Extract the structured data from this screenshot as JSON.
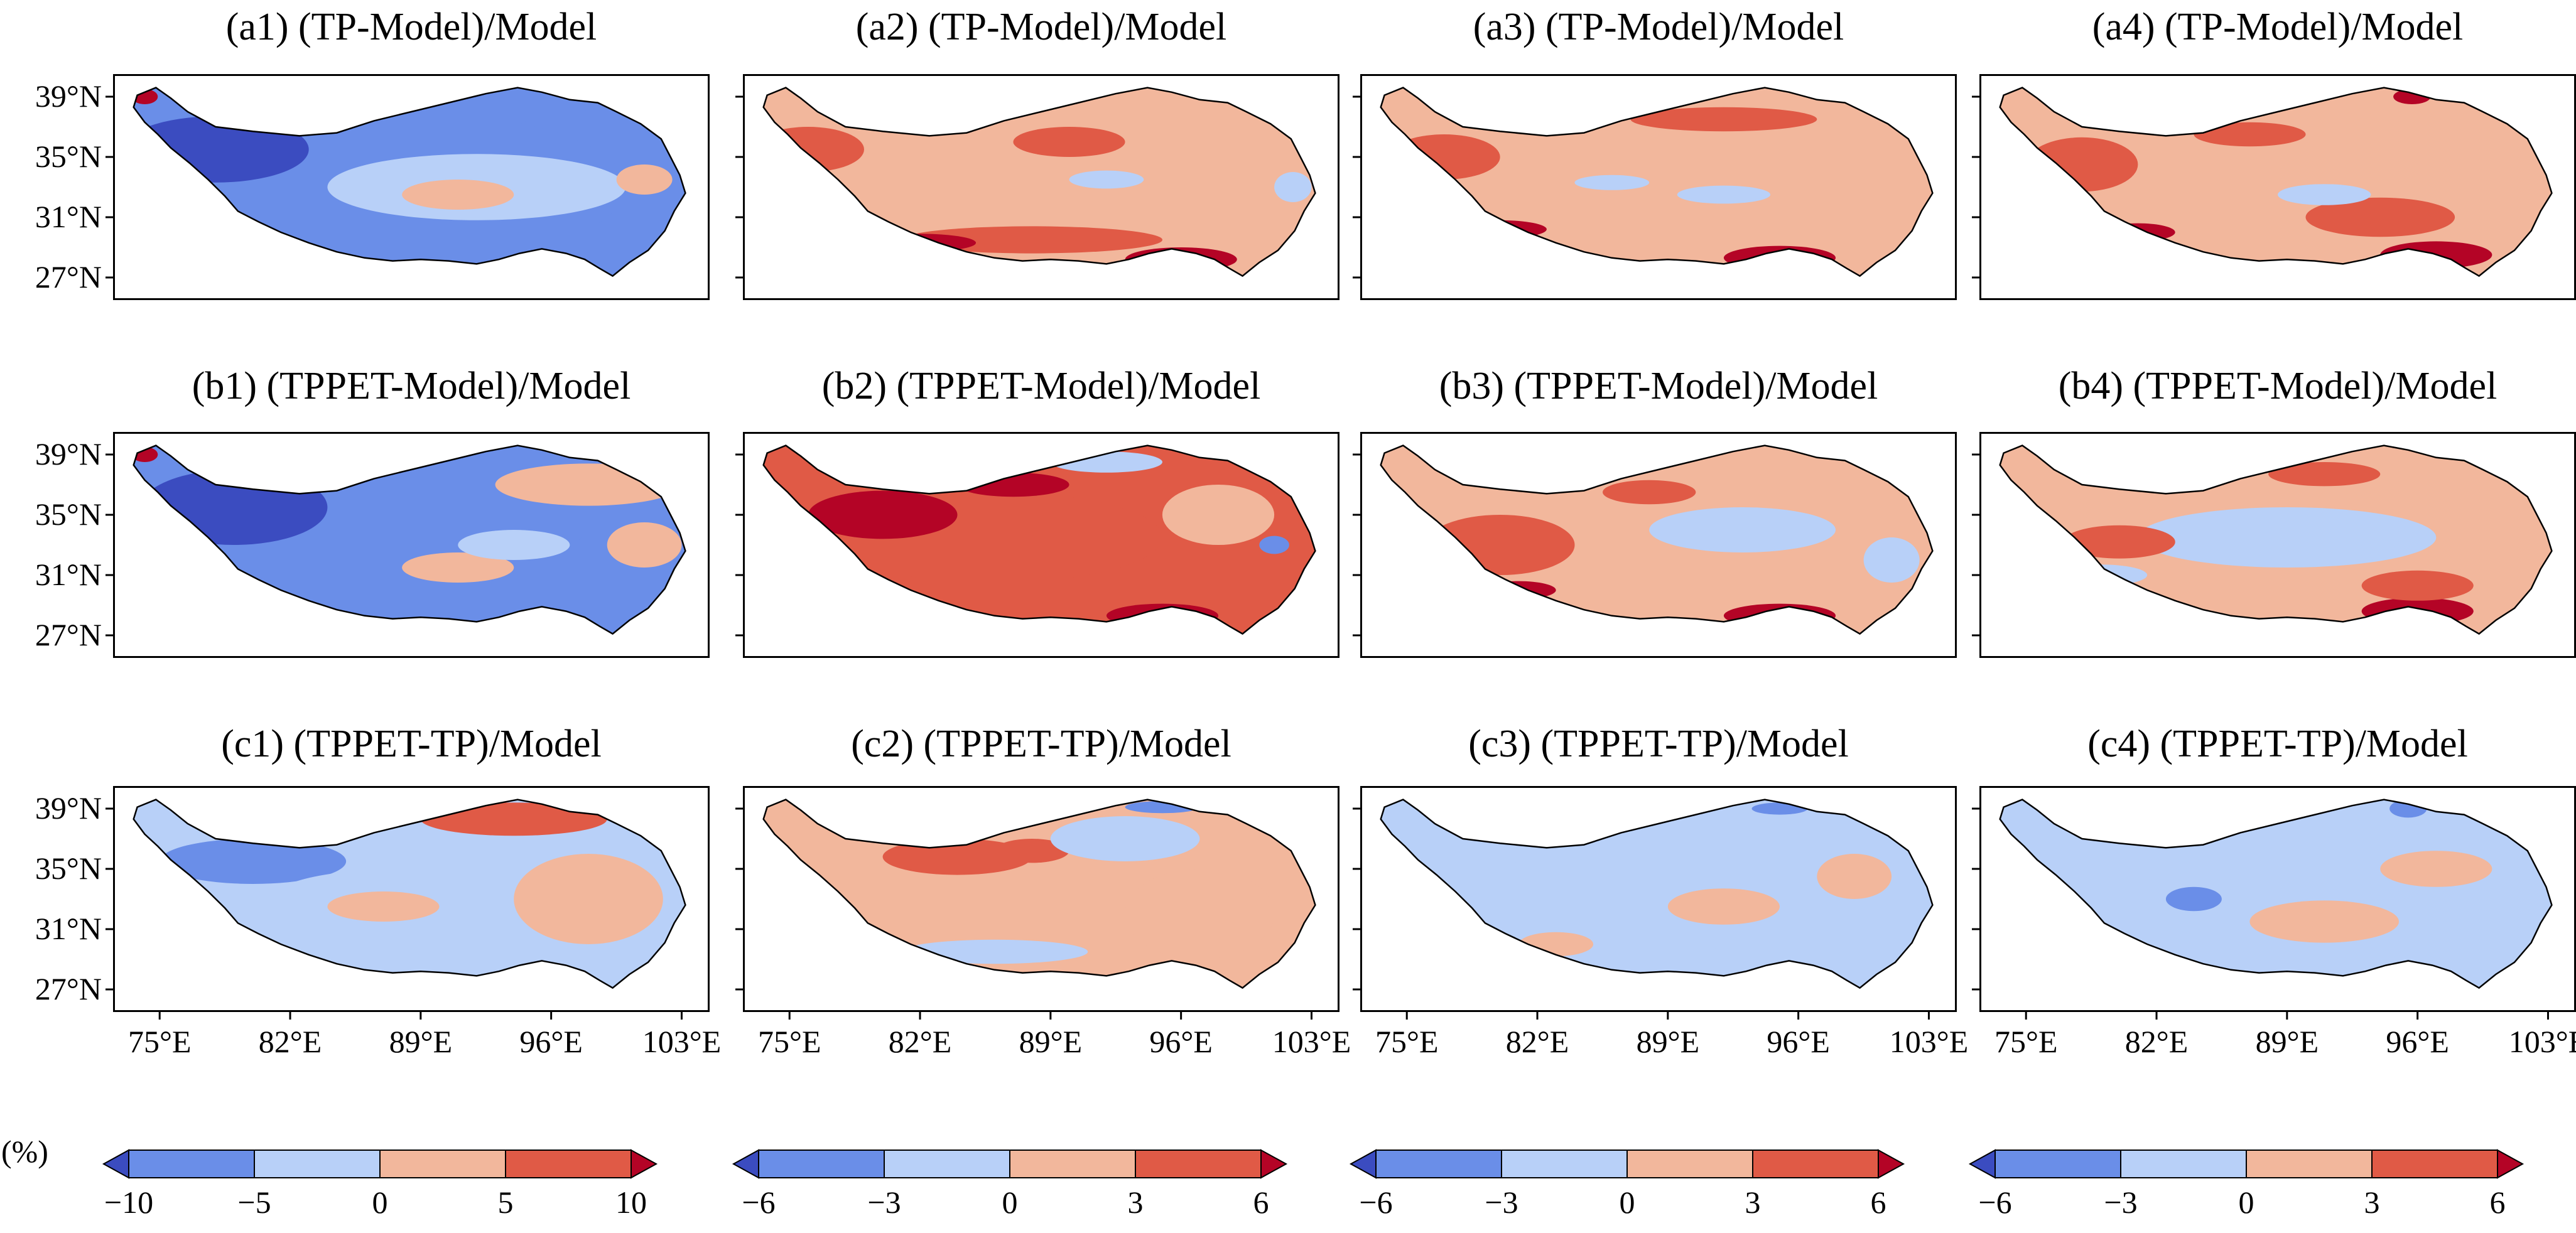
{
  "figure": {
    "unit_label": "(%)",
    "row_titles": {
      "a": "(TP-Model)/Model",
      "b": "(TPPET-Model)/Model",
      "c": "(TPPET-TP)/Model"
    },
    "panels": [
      {
        "id": "a1",
        "label": "(a1) (TP-Model)/Model",
        "dominant": "blue"
      },
      {
        "id": "a2",
        "label": "(a2) (TP-Model)/Model",
        "dominant": "light-red"
      },
      {
        "id": "a3",
        "label": "(a3) (TP-Model)/Model",
        "dominant": "light-red"
      },
      {
        "id": "a4",
        "label": "(a4) (TP-Model)/Model",
        "dominant": "light-red"
      },
      {
        "id": "b1",
        "label": "(b1) (TPPET-Model)/Model",
        "dominant": "blue"
      },
      {
        "id": "b2",
        "label": "(b2) (TPPET-Model)/Model",
        "dominant": "red"
      },
      {
        "id": "b3",
        "label": "(b3) (TPPET-Model)/Model",
        "dominant": "light-red"
      },
      {
        "id": "b4",
        "label": "(b4) (TPPET-Model)/Model",
        "dominant": "light-red"
      },
      {
        "id": "c1",
        "label": "(c1) (TPPET-TP)/Model",
        "dominant": "light-blue"
      },
      {
        "id": "c2",
        "label": "(c2) (TPPET-TP)/Model",
        "dominant": "light-red"
      },
      {
        "id": "c3",
        "label": "(c3) (TPPET-TP)/Model",
        "dominant": "light-blue"
      },
      {
        "id": "c4",
        "label": "(c4) (TPPET-TP)/Model",
        "dominant": "light-blue"
      }
    ],
    "lat_ticks": [
      "39°N",
      "35°N",
      "31°N",
      "27°N"
    ],
    "lon_ticks": [
      "75°E",
      "82°E",
      "89°E",
      "96°E",
      "103°E"
    ],
    "colorbars": [
      {
        "column": 1,
        "ticks": [
          "−10",
          "−5",
          "0",
          "5",
          "10"
        ],
        "range": [
          -10,
          10
        ]
      },
      {
        "column": 2,
        "ticks": [
          "−6",
          "−3",
          "0",
          "3",
          "6"
        ],
        "range": [
          -6,
          6
        ]
      },
      {
        "column": 3,
        "ticks": [
          "−6",
          "−3",
          "0",
          "3",
          "6"
        ],
        "range": [
          -6,
          6
        ]
      },
      {
        "column": 4,
        "ticks": [
          "−6",
          "−3",
          "0",
          "3",
          "6"
        ],
        "range": [
          -6,
          6
        ]
      }
    ],
    "colors": {
      "dark_red": "#b40426",
      "red": "#e05a46",
      "light_red": "#f2b79c",
      "light_blue": "#b8d0f8",
      "blue": "#6a8ee8",
      "dark_blue": "#3b4cc0"
    }
  }
}
